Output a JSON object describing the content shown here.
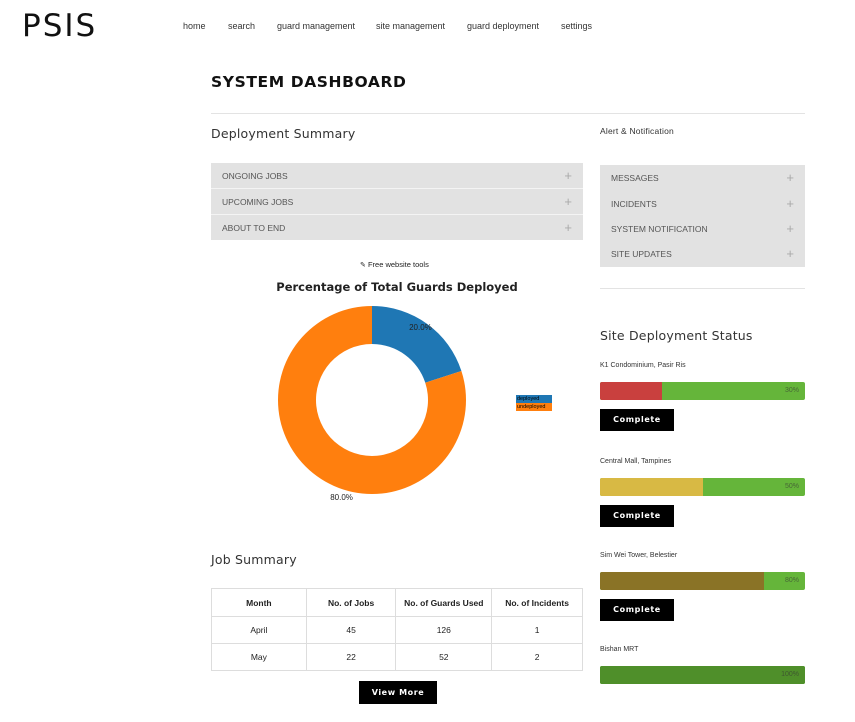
{
  "brand": "PSIS",
  "nav": [
    "home",
    "search",
    "guard management",
    "site management",
    "guard deployment",
    "settings"
  ],
  "page_title": "SYSTEM DASHBOARD",
  "deployment_summary": {
    "title": "Deployment Summary",
    "items": [
      "ONGOING JOBS",
      "UPCOMING JOBS",
      "ABOUT TO END"
    ]
  },
  "alerts": {
    "title": "Alert & Notification",
    "items": [
      "MESSAGES",
      "INCIDENTS",
      "SYSTEM NOTIFICATION",
      "SITE UPDATES"
    ]
  },
  "tools_link": "Free website tools",
  "chart_data": {
    "type": "pie",
    "title": "Percentage of Total Guards Deployed",
    "labels": [
      "deployed",
      "undeployed"
    ],
    "values": [
      20.0,
      80.0
    ],
    "value_labels": [
      "20.0%",
      "80.0%"
    ],
    "colors": [
      "#1f77b4",
      "#ff7f0e"
    ],
    "donut": true,
    "legend": "right"
  },
  "site_status": {
    "title": "Site Deployment Status",
    "button_label": "Complete",
    "sites": [
      {
        "name": "K1 Condominium, Pasir Ris",
        "percent": 30,
        "label": "30%",
        "color": "#c9403e"
      },
      {
        "name": "Central Mall, Tampines",
        "percent": 50,
        "label": "50%",
        "color": "#d8b944"
      },
      {
        "name": "Sim Wei Tower, Belestier",
        "percent": 80,
        "label": "80%",
        "color": "#8a7326"
      },
      {
        "name": "Bishan MRT",
        "percent": 100,
        "label": "100%",
        "color": "#4f8f2a"
      }
    ]
  },
  "job_summary": {
    "title": "Job Summary",
    "columns": [
      "Month",
      "No. of Jobs",
      "No. of Guards Used",
      "No. of Incidents"
    ],
    "rows": [
      [
        "April",
        "45",
        "126",
        "1"
      ],
      [
        "May",
        "22",
        "52",
        "2"
      ]
    ],
    "view_more": "View More"
  }
}
